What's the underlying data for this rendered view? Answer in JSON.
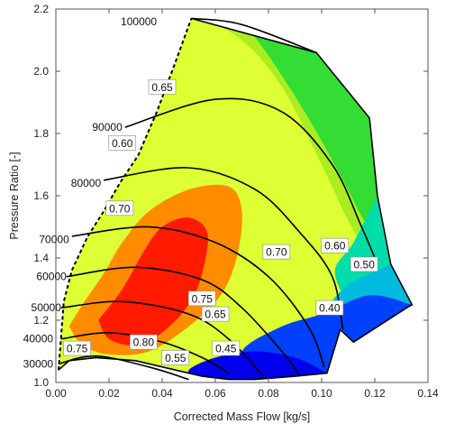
{
  "chart_data": {
    "type": "contour",
    "xlabel": "Corrected Mass Flow [kg/s]",
    "ylabel": "Pressure Ratio [-]",
    "xlim": [
      0.0,
      0.14
    ],
    "ylim": [
      1.0,
      2.2
    ],
    "xticks": [
      "0.00",
      "0.02",
      "0.04",
      "0.06",
      "0.08",
      "0.10",
      "0.12",
      "0.14"
    ],
    "yticks": [
      "1.0",
      "1.2",
      "1.4",
      "1.6",
      "1.8",
      "2.0",
      "2.2"
    ],
    "grid": false,
    "colors": {
      "peak": "#ff1a00",
      "high": "#ff8c00",
      "mid": "#ddff33",
      "mid2": "#aaee22",
      "green": "#33dd33",
      "teal": "#00ddaa",
      "cyan": "#00bbdd",
      "blue": "#0040ff",
      "deep_blue": "#0000ee",
      "line": "#000000"
    },
    "map_boundary": [
      [
        0.001,
        1.04
      ],
      [
        0.003,
        1.26
      ],
      [
        0.006,
        1.36
      ],
      [
        0.012,
        1.47
      ],
      [
        0.018,
        1.55
      ],
      [
        0.024,
        1.64
      ],
      [
        0.031,
        1.73
      ],
      [
        0.038,
        1.87
      ],
      [
        0.045,
        2.03
      ],
      [
        0.051,
        2.17
      ],
      [
        0.098,
        2.06
      ],
      [
        0.118,
        1.85
      ],
      [
        0.121,
        1.6
      ],
      [
        0.126,
        1.38
      ],
      [
        0.134,
        1.25
      ],
      [
        0.132,
        1.24
      ],
      [
        0.112,
        1.13
      ],
      [
        0.107,
        1.17
      ],
      [
        0.102,
        1.03
      ],
      [
        0.09,
        1.02
      ],
      [
        0.075,
        1.01
      ],
      [
        0.065,
        1.01
      ],
      [
        0.055,
        1.02
      ],
      [
        0.045,
        1.04
      ],
      [
        0.03,
        1.07
      ],
      [
        0.015,
        1.08
      ],
      [
        0.005,
        1.07
      ]
    ],
    "speed_lines": [
      {
        "label": "30000",
        "label_at": [
          -0.001,
          1.06
        ],
        "points": [
          [
            0.001,
            1.06
          ],
          [
            0.015,
            1.085
          ],
          [
            0.035,
            1.05
          ],
          [
            0.05,
            1.01
          ]
        ]
      },
      {
        "label": "40000",
        "label_at": [
          -0.001,
          1.14
        ],
        "points": [
          [
            0.002,
            1.14
          ],
          [
            0.02,
            1.16
          ],
          [
            0.04,
            1.13
          ],
          [
            0.055,
            1.08
          ],
          [
            0.065,
            1.03
          ]
        ]
      },
      {
        "label": "50000",
        "label_at": [
          0.002,
          1.24
        ],
        "points": [
          [
            0.002,
            1.24
          ],
          [
            0.025,
            1.26
          ],
          [
            0.05,
            1.22
          ],
          [
            0.065,
            1.14
          ],
          [
            0.078,
            1.02
          ]
        ]
      },
      {
        "label": "60000",
        "label_at": [
          0.004,
          1.34
        ],
        "points": [
          [
            0.004,
            1.34
          ],
          [
            0.03,
            1.37
          ],
          [
            0.055,
            1.33
          ],
          [
            0.07,
            1.24
          ],
          [
            0.085,
            1.1
          ],
          [
            0.092,
            1.02
          ]
        ]
      },
      {
        "label": "70000",
        "label_at": [
          0.005,
          1.46
        ],
        "points": [
          [
            0.006,
            1.47
          ],
          [
            0.035,
            1.5
          ],
          [
            0.06,
            1.45
          ],
          [
            0.08,
            1.34
          ],
          [
            0.095,
            1.18
          ],
          [
            0.101,
            1.05
          ]
        ]
      },
      {
        "label": "80000",
        "label_at": [
          0.017,
          1.64
        ],
        "points": [
          [
            0.018,
            1.65
          ],
          [
            0.05,
            1.69
          ],
          [
            0.075,
            1.62
          ],
          [
            0.092,
            1.48
          ],
          [
            0.104,
            1.34
          ],
          [
            0.108,
            1.17
          ]
        ]
      },
      {
        "label": "90000",
        "label_at": [
          0.025,
          1.82
        ],
        "points": [
          [
            0.026,
            1.82
          ],
          [
            0.06,
            1.91
          ],
          [
            0.085,
            1.87
          ],
          [
            0.104,
            1.7
          ],
          [
            0.115,
            1.5
          ],
          [
            0.121,
            1.38
          ]
        ]
      },
      {
        "label": "100000",
        "label_at": [
          0.038,
          2.16
        ],
        "points": [
          [
            0.051,
            2.17
          ],
          [
            0.07,
            2.15
          ],
          [
            0.098,
            2.06
          ]
        ]
      }
    ],
    "efficiency_labels": [
      {
        "text": "0.65",
        "at": [
          0.04,
          1.95
        ]
      },
      {
        "text": "0.60",
        "at": [
          0.025,
          1.77
        ]
      },
      {
        "text": "0.70",
        "at": [
          0.024,
          1.56
        ]
      },
      {
        "text": "0.70",
        "at": [
          0.083,
          1.42
        ]
      },
      {
        "text": "0.60",
        "at": [
          0.105,
          1.44
        ]
      },
      {
        "text": "0.50",
        "at": [
          0.116,
          1.38
        ]
      },
      {
        "text": "0.75",
        "at": [
          0.055,
          1.27
        ]
      },
      {
        "text": "0.65",
        "at": [
          0.06,
          1.22
        ]
      },
      {
        "text": "0.40",
        "at": [
          0.103,
          1.24
        ]
      },
      {
        "text": "0.80",
        "at": [
          0.033,
          1.13
        ]
      },
      {
        "text": "0.75",
        "at": [
          0.008,
          1.11
        ]
      },
      {
        "text": "0.45",
        "at": [
          0.064,
          1.11
        ]
      },
      {
        "text": "0.55",
        "at": [
          0.045,
          1.08
        ]
      }
    ],
    "efficiency_regions": [
      {
        "level": "mid2",
        "points": [
          [
            0.055,
            2.17
          ],
          [
            0.098,
            2.06
          ],
          [
            0.118,
            1.85
          ],
          [
            0.121,
            1.6
          ],
          [
            0.126,
            1.38
          ],
          [
            0.12,
            1.38
          ],
          [
            0.11,
            1.52
          ],
          [
            0.1,
            1.7
          ],
          [
            0.085,
            1.95
          ],
          [
            0.07,
            2.1
          ]
        ]
      },
      {
        "level": "green",
        "points": [
          [
            0.07,
            2.16
          ],
          [
            0.098,
            2.06
          ],
          [
            0.118,
            1.85
          ],
          [
            0.121,
            1.6
          ],
          [
            0.118,
            1.5
          ],
          [
            0.108,
            1.65
          ],
          [
            0.095,
            1.85
          ],
          [
            0.08,
            2.05
          ]
        ]
      },
      {
        "level": "teal",
        "points": [
          [
            0.121,
            1.6
          ],
          [
            0.126,
            1.38
          ],
          [
            0.134,
            1.25
          ],
          [
            0.115,
            1.22
          ],
          [
            0.105,
            1.35
          ],
          [
            0.112,
            1.45
          ]
        ]
      },
      {
        "level": "cyan",
        "points": [
          [
            0.126,
            1.38
          ],
          [
            0.134,
            1.25
          ],
          [
            0.112,
            1.13
          ],
          [
            0.1,
            1.18
          ],
          [
            0.108,
            1.3
          ]
        ]
      },
      {
        "level": "blue",
        "points": [
          [
            0.134,
            1.25
          ],
          [
            0.112,
            1.13
          ],
          [
            0.107,
            1.17
          ],
          [
            0.102,
            1.03
          ],
          [
            0.075,
            1.01
          ],
          [
            0.07,
            1.1
          ],
          [
            0.085,
            1.18
          ],
          [
            0.1,
            1.22
          ],
          [
            0.118,
            1.28
          ]
        ]
      },
      {
        "level": "deep_blue",
        "points": [
          [
            0.102,
            1.03
          ],
          [
            0.075,
            1.01
          ],
          [
            0.055,
            1.02
          ],
          [
            0.05,
            1.04
          ],
          [
            0.06,
            1.08
          ],
          [
            0.075,
            1.1
          ],
          [
            0.09,
            1.08
          ]
        ]
      },
      {
        "level": "high",
        "points": [
          [
            0.005,
            1.18
          ],
          [
            0.01,
            1.25
          ],
          [
            0.018,
            1.35
          ],
          [
            0.025,
            1.45
          ],
          [
            0.035,
            1.55
          ],
          [
            0.05,
            1.62
          ],
          [
            0.065,
            1.63
          ],
          [
            0.07,
            1.55
          ],
          [
            0.068,
            1.4
          ],
          [
            0.062,
            1.28
          ],
          [
            0.05,
            1.18
          ],
          [
            0.035,
            1.1
          ],
          [
            0.02,
            1.09
          ],
          [
            0.01,
            1.12
          ]
        ]
      },
      {
        "level": "peak",
        "points": [
          [
            0.016,
            1.2
          ],
          [
            0.025,
            1.3
          ],
          [
            0.033,
            1.42
          ],
          [
            0.04,
            1.5
          ],
          [
            0.05,
            1.53
          ],
          [
            0.057,
            1.48
          ],
          [
            0.055,
            1.35
          ],
          [
            0.05,
            1.25
          ],
          [
            0.04,
            1.16
          ],
          [
            0.03,
            1.12
          ],
          [
            0.02,
            1.14
          ]
        ]
      }
    ]
  }
}
